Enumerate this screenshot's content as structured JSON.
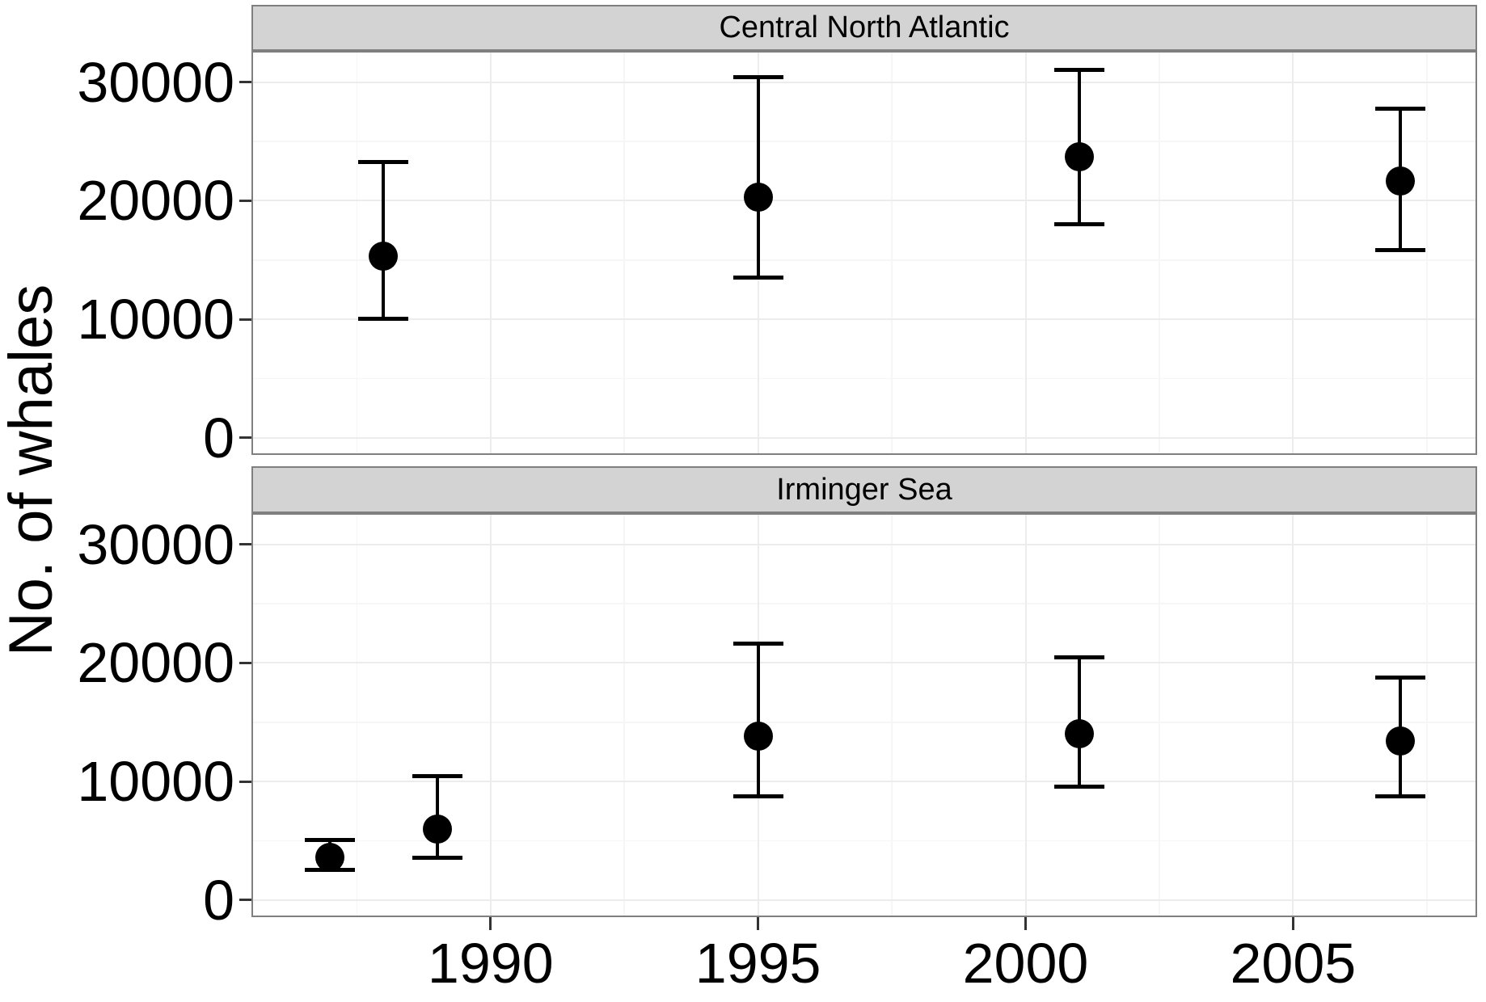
{
  "figure_title": "",
  "chart_data": {
    "type": "scatter",
    "title": "",
    "xlabel": "",
    "ylabel": "No. of whales",
    "legend": "none",
    "grid": true,
    "x_range": [
      1985.53,
      2008.44
    ],
    "y_range": [
      -1450,
      32650
    ],
    "x_ticks": [
      1990,
      1995,
      2000,
      2005
    ],
    "x_tick_labels": [
      "1990",
      "1995",
      "2000",
      "2005"
    ],
    "y_ticks": [
      0,
      10000,
      20000,
      30000
    ],
    "y_tick_labels": [
      "0",
      "10000",
      "20000",
      "30000"
    ],
    "x_minor_gridlines": [
      1987.5,
      1992.5,
      1997.5,
      2002.5,
      2007.5
    ],
    "y_minor_gridlines": [
      5000,
      15000,
      25000
    ],
    "series_marker": "filled-circle-with-error-bars",
    "facets": [
      {
        "label": "Central North Atlantic",
        "points": [
          {
            "year": 1988,
            "estimate": 15300,
            "ci_low": 10000,
            "ci_high": 23300
          },
          {
            "year": 1995,
            "estimate": 20300,
            "ci_low": 13500,
            "ci_high": 30500
          },
          {
            "year": 2001,
            "estimate": 23700,
            "ci_low": 18000,
            "ci_high": 31100
          },
          {
            "year": 2007,
            "estimate": 21700,
            "ci_low": 15800,
            "ci_high": 27800
          }
        ]
      },
      {
        "label": "Irminger Sea",
        "points": [
          {
            "year": 1987,
            "estimate": 3600,
            "ci_low": 2500,
            "ci_high": 5100
          },
          {
            "year": 1989,
            "estimate": 6000,
            "ci_low": 3500,
            "ci_high": 10500
          },
          {
            "year": 1995,
            "estimate": 13800,
            "ci_low": 8700,
            "ci_high": 21700
          },
          {
            "year": 2001,
            "estimate": 14000,
            "ci_low": 9500,
            "ci_high": 20500
          },
          {
            "year": 2007,
            "estimate": 13400,
            "ci_low": 8700,
            "ci_high": 18800
          }
        ]
      }
    ]
  },
  "colors": {
    "point": "#000000",
    "error_bar": "#000000",
    "strip_background": "#d3d3d3",
    "panel_border": "#7f7f7f",
    "grid_major": "#ececec",
    "grid_minor": "#f6f6f6",
    "tick_mark": "#333333",
    "text": "#000000",
    "background": "#ffffff"
  }
}
